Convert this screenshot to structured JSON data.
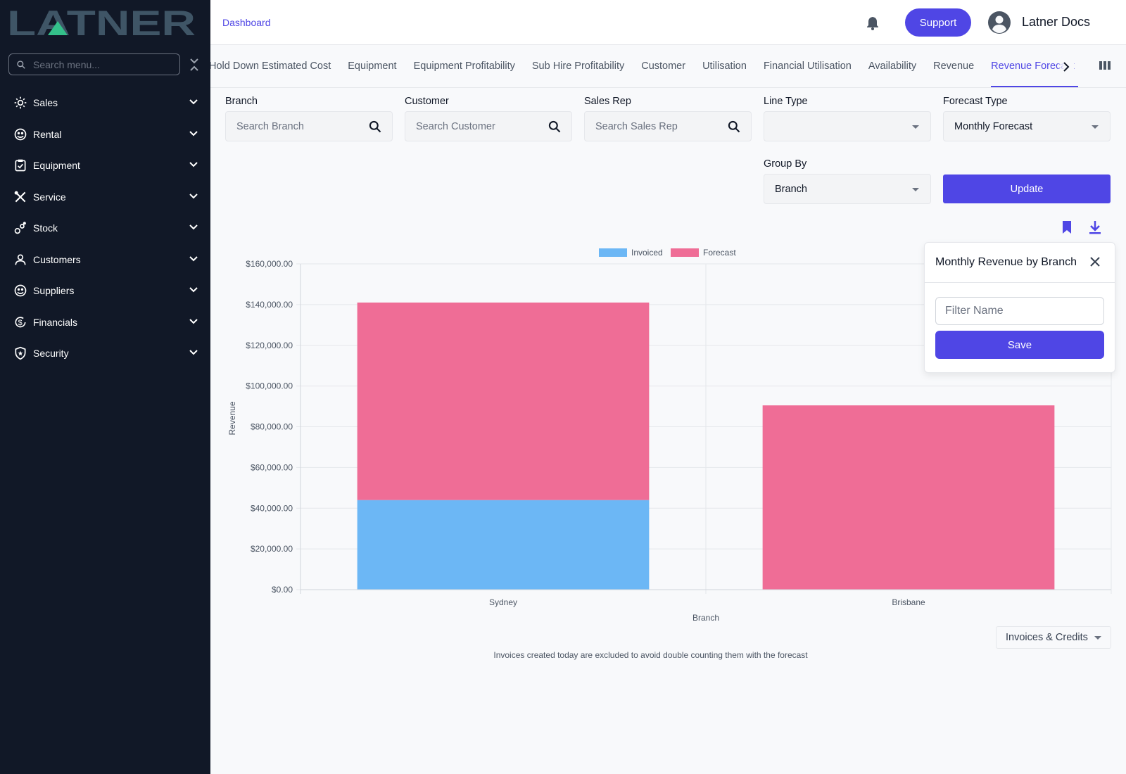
{
  "app": {
    "logo_text": "LATNER"
  },
  "sidebar": {
    "search_placeholder": "Search menu...",
    "items": [
      {
        "label": "Sales",
        "icon": "sales-icon"
      },
      {
        "label": "Rental",
        "icon": "rental-icon"
      },
      {
        "label": "Equipment",
        "icon": "equipment-icon"
      },
      {
        "label": "Service",
        "icon": "tools-icon"
      },
      {
        "label": "Stock",
        "icon": "stock-icon"
      },
      {
        "label": "Customers",
        "icon": "person-icon"
      },
      {
        "label": "Suppliers",
        "icon": "supplier-icon"
      },
      {
        "label": "Financials",
        "icon": "dollar-cycle-icon"
      },
      {
        "label": "Security",
        "icon": "shield-icon"
      }
    ]
  },
  "header": {
    "breadcrumb": "Dashboard",
    "support_label": "Support",
    "user_name": "Latner Docs"
  },
  "tabs": [
    {
      "label": "Hold Down Estimated Cost",
      "active": false
    },
    {
      "label": "Equipment",
      "active": false
    },
    {
      "label": "Equipment Profitability",
      "active": false
    },
    {
      "label": "Sub Hire Profitability",
      "active": false
    },
    {
      "label": "Customer",
      "active": false
    },
    {
      "label": "Utilisation",
      "active": false
    },
    {
      "label": "Financial Utilisation",
      "active": false
    },
    {
      "label": "Availability",
      "active": false
    },
    {
      "label": "Revenue",
      "active": false
    },
    {
      "label": "Revenue Forecast",
      "active": true
    }
  ],
  "filters": {
    "branch": {
      "label": "Branch",
      "placeholder": "Search Branch"
    },
    "customer": {
      "label": "Customer",
      "placeholder": "Search Customer"
    },
    "sales_rep": {
      "label": "Sales Rep",
      "placeholder": "Search Sales Rep"
    },
    "line_type": {
      "label": "Line Type",
      "value": ""
    },
    "forecast_type": {
      "label": "Forecast Type",
      "value": "Monthly Forecast"
    },
    "group_by": {
      "label": "Group By",
      "value": "Branch"
    },
    "update_label": "Update"
  },
  "popover": {
    "title": "Monthly Revenue by Branch",
    "input_placeholder": "Filter Name",
    "save_label": "Save"
  },
  "chart_data": {
    "type": "bar",
    "stacked": true,
    "categories": [
      "Sydney",
      "Brisbane"
    ],
    "series": [
      {
        "name": "Invoiced",
        "values": [
          44000,
          0
        ],
        "color": "#6cb7f5"
      },
      {
        "name": "Forecast",
        "values": [
          97000,
          90500
        ],
        "color": "#ef6d96"
      }
    ],
    "xlabel": "Branch",
    "ylabel": "Revenue",
    "ylim": [
      0,
      160000
    ],
    "yticks": [
      "$0.00",
      "$20,000.00",
      "$40,000.00",
      "$60,000.00",
      "$80,000.00",
      "$100,000.00",
      "$120,000.00",
      "$140,000.00",
      "$160,000.00"
    ],
    "legend": "top",
    "grid": true
  },
  "invoice_select": {
    "value": "Invoices & Credits"
  },
  "footnote": "Invoices created today are excluded to avoid double counting them with the forecast"
}
